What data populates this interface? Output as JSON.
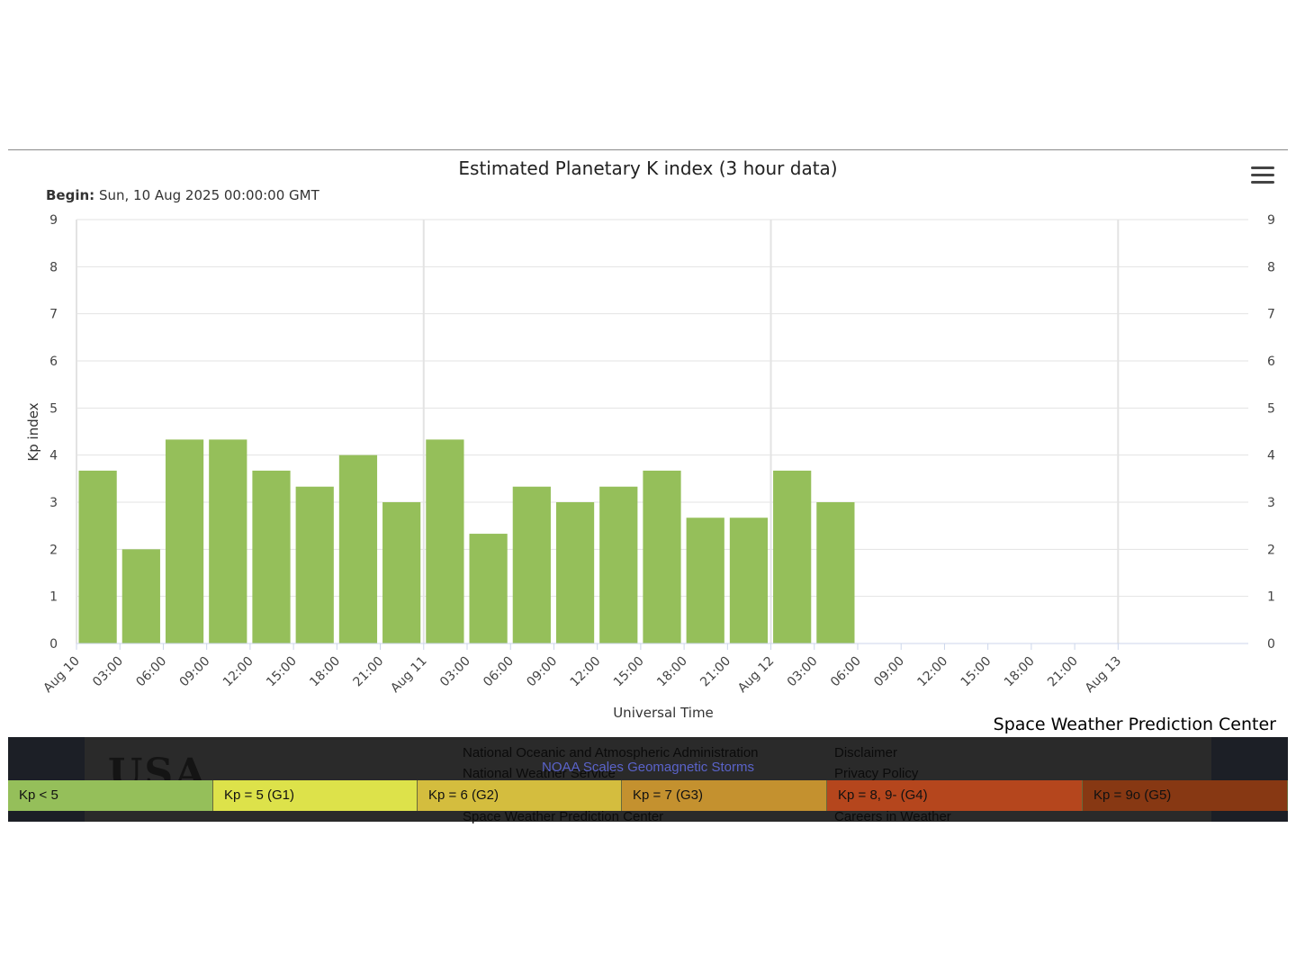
{
  "header": {
    "title": "Estimated Planetary K index (3 hour data)",
    "begin_label": "Begin:",
    "begin_value": "Sun, 10 Aug 2025 00:00:00 GMT",
    "menu_icon": "hamburger-menu-icon"
  },
  "chart_data": {
    "type": "bar",
    "title": "Estimated Planetary K index (3 hour data)",
    "xlabel": "Universal Time",
    "ylabel": "Kp index",
    "ylim": [
      0,
      9
    ],
    "yticks": [
      0,
      1,
      2,
      3,
      4,
      5,
      6,
      7,
      8,
      9
    ],
    "x_range": [
      "2025-08-10 00:00",
      "2025-08-13 09:00"
    ],
    "xtick_labels": [
      "Aug 10",
      "03:00",
      "06:00",
      "09:00",
      "12:00",
      "15:00",
      "18:00",
      "21:00",
      "Aug 11",
      "03:00",
      "06:00",
      "09:00",
      "12:00",
      "15:00",
      "18:00",
      "21:00",
      "Aug 12",
      "03:00",
      "06:00",
      "09:00",
      "12:00",
      "15:00",
      "18:00",
      "21:00",
      "Aug 13"
    ],
    "x": [
      "2025-08-10 00:00",
      "2025-08-10 03:00",
      "2025-08-10 06:00",
      "2025-08-10 09:00",
      "2025-08-10 12:00",
      "2025-08-10 15:00",
      "2025-08-10 18:00",
      "2025-08-10 21:00",
      "2025-08-11 00:00",
      "2025-08-11 03:00",
      "2025-08-11 06:00",
      "2025-08-11 09:00",
      "2025-08-11 12:00",
      "2025-08-11 15:00",
      "2025-08-11 18:00",
      "2025-08-11 21:00",
      "2025-08-12 00:00",
      "2025-08-12 03:00"
    ],
    "values": [
      3.67,
      2.0,
      4.33,
      4.33,
      3.67,
      3.33,
      4.0,
      3.0,
      4.33,
      2.33,
      3.33,
      3.0,
      3.33,
      3.67,
      2.67,
      2.67,
      3.67,
      3.0
    ],
    "bar_color": "#95bf5a",
    "grid": true
  },
  "credit": "Space Weather Prediction Center",
  "footer": {
    "ghost_lines": [
      "National Oceanic and Atmospheric Administration",
      "National Weather Service",
      "Space Weather Prediction Center"
    ],
    "ghost_links": [
      "Disclaimer",
      "Privacy Policy",
      "Careers in Weather"
    ],
    "logo_text": "USA",
    "scale_caption": "NOAA Scales Geomagnetic Storms"
  },
  "legend": [
    {
      "label": "Kp < 5",
      "color": "#95bf5a"
    },
    {
      "label": "Kp = 5 (G1)",
      "color": "#dde24a"
    },
    {
      "label": "Kp = 6 (G2)",
      "color": "#d4bd3e"
    },
    {
      "label": "Kp = 7 (G3)",
      "color": "#c4912f"
    },
    {
      "label": "Kp = 8, 9- (G4)",
      "color": "#b5461d"
    },
    {
      "label": "Kp = 9o (G5)",
      "color": "#873813"
    }
  ]
}
